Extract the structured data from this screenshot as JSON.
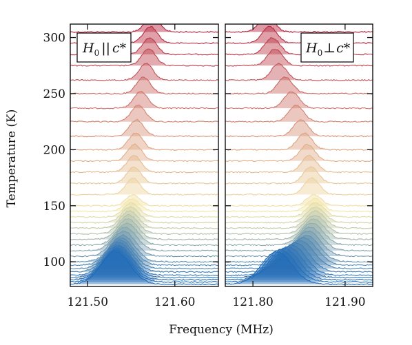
{
  "chart_data": {
    "type": "line",
    "xlabel": "Frequency (MHz)",
    "ylabel": "Temperature (K)",
    "y_ticks": [
      {
        "value": 100,
        "label": "100"
      },
      {
        "value": 150,
        "label": "150"
      },
      {
        "value": 200,
        "label": "200"
      },
      {
        "value": 250,
        "label": "250"
      },
      {
        "value": 300,
        "label": "300"
      }
    ],
    "ylim": [
      78,
      312
    ],
    "temperatures_K": [
      305,
      295,
      285,
      275,
      262,
      250,
      237,
      225,
      212,
      200,
      190,
      180,
      170,
      160,
      150,
      145,
      140,
      135,
      130,
      125,
      120,
      115,
      110,
      105,
      100,
      97,
      94,
      91,
      88,
      86,
      84,
      82,
      80
    ],
    "color_scale": {
      "low": "#1f6bb8",
      "mid": "#f3e6a8",
      "high": "#b3203a"
    },
    "panels": [
      {
        "legend": {
          "main": "H",
          "sub": "0",
          "relation": "||",
          "axis": "c*"
        },
        "xlim": [
          121.48,
          121.65
        ],
        "x_ticks": [
          {
            "value": 121.5,
            "label": "121.50"
          },
          {
            "value": 121.6,
            "label": "121.60"
          }
        ],
        "peak_MHz_by_temperature": [
          121.574,
          121.572,
          121.571,
          121.57,
          121.567,
          121.564,
          121.561,
          121.558,
          121.556,
          121.555,
          121.554,
          121.553,
          121.553,
          121.552,
          121.552,
          121.551,
          121.55,
          121.549,
          121.548,
          121.547,
          121.546,
          121.545,
          121.543,
          121.541,
          121.54,
          121.538,
          121.537,
          121.536,
          121.535,
          121.535,
          121.534,
          121.533,
          121.532
        ]
      },
      {
        "legend": {
          "main": "H",
          "sub": "0",
          "relation": "⊥",
          "axis": "c*"
        },
        "xlim": [
          121.77,
          121.93
        ],
        "x_ticks": [
          {
            "value": 121.8,
            "label": "121.80"
          },
          {
            "value": 121.9,
            "label": "121.90"
          }
        ],
        "peak_MHz_by_temperature": [
          121.815,
          121.818,
          121.821,
          121.824,
          121.828,
          121.835,
          121.842,
          121.847,
          121.852,
          121.856,
          121.859,
          121.861,
          121.863,
          121.864,
          121.866,
          121.867,
          121.868,
          121.868,
          121.868,
          121.867,
          121.866,
          121.864,
          121.862,
          121.86,
          121.858,
          121.855,
          121.851,
          121.846,
          121.842,
          121.838,
          121.834,
          121.83,
          121.826
        ]
      }
    ]
  }
}
